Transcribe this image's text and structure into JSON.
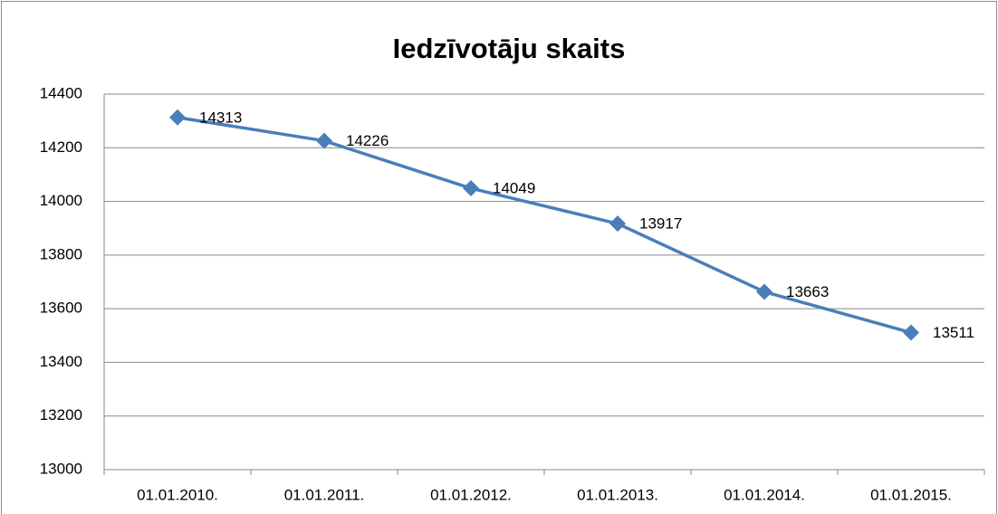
{
  "chart_data": {
    "type": "line",
    "title": "Iedzīvotāju skaits",
    "categories": [
      "01.01.2010.",
      "01.01.2011.",
      "01.01.2012.",
      "01.01.2013.",
      "01.01.2014.",
      "01.01.2015."
    ],
    "values": [
      14313,
      14226,
      14049,
      13917,
      13663,
      13511
    ],
    "color": "#4a7ebb",
    "ylim": [
      13000,
      14400
    ],
    "yticks": [
      13000,
      13200,
      13400,
      13600,
      13800,
      14000,
      14200,
      14400
    ],
    "grid": true
  }
}
